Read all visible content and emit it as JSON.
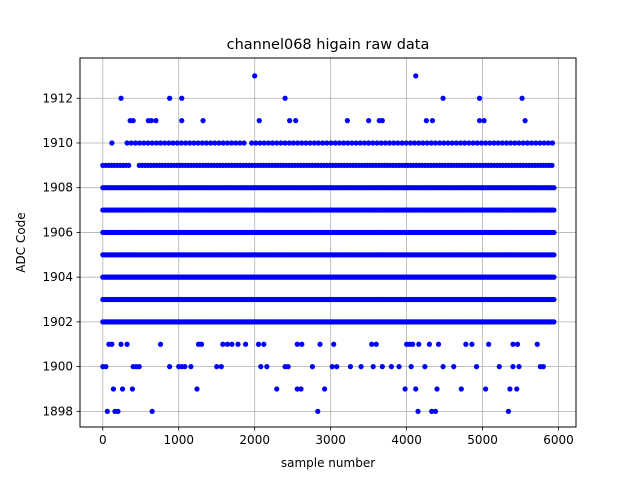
{
  "chart_data": {
    "type": "scatter",
    "title": "channel068 higain raw data",
    "xlabel": "sample number",
    "ylabel": "ADC Code",
    "xlim": [
      -300,
      6230
    ],
    "ylim": [
      1897.3,
      1913.8
    ],
    "xticks": [
      0,
      1000,
      2000,
      3000,
      4000,
      5000,
      6000
    ],
    "yticks": [
      1898,
      1900,
      1902,
      1904,
      1906,
      1908,
      1910,
      1912
    ],
    "grid": true,
    "marker_color": "#0000ff",
    "series": [
      {
        "levels": [
          {
            "y": 1902,
            "ranges": [
              [
                0,
                5940
              ]
            ],
            "step": 20
          },
          {
            "y": 1903,
            "ranges": [
              [
                0,
                5940
              ]
            ],
            "step": 22
          },
          {
            "y": 1904,
            "ranges": [
              [
                0,
                5940
              ]
            ],
            "step": 18
          },
          {
            "y": 1905,
            "ranges": [
              [
                0,
                5940
              ]
            ],
            "step": 18
          },
          {
            "y": 1906,
            "ranges": [
              [
                0,
                5940
              ]
            ],
            "step": 18
          },
          {
            "y": 1907,
            "ranges": [
              [
                0,
                5940
              ]
            ],
            "step": 18
          },
          {
            "y": 1908,
            "ranges": [
              [
                0,
                5940
              ]
            ],
            "step": 20
          },
          {
            "y": 1909,
            "ranges": [
              [
                0,
                360
              ],
              [
                480,
                5940
              ]
            ],
            "step": 38
          },
          {
            "y": 1910,
            "ranges": [
              [
                320,
                1900
              ],
              [
                1960,
                5940
              ]
            ],
            "step": 55
          }
        ],
        "points": [
          [
            60,
            1898
          ],
          [
            160,
            1898
          ],
          [
            200,
            1898
          ],
          [
            650,
            1898
          ],
          [
            2830,
            1898
          ],
          [
            4150,
            1898
          ],
          [
            4330,
            1898
          ],
          [
            4380,
            1898
          ],
          [
            5340,
            1898
          ],
          [
            140,
            1899
          ],
          [
            260,
            1899
          ],
          [
            390,
            1899
          ],
          [
            1240,
            1899
          ],
          [
            2290,
            1899
          ],
          [
            2560,
            1899
          ],
          [
            2610,
            1899
          ],
          [
            2920,
            1899
          ],
          [
            3980,
            1899
          ],
          [
            4120,
            1899
          ],
          [
            4400,
            1899
          ],
          [
            4720,
            1899
          ],
          [
            5040,
            1899
          ],
          [
            5360,
            1899
          ],
          [
            5450,
            1899
          ],
          [
            0,
            1900
          ],
          [
            40,
            1900
          ],
          [
            400,
            1900
          ],
          [
            440,
            1900
          ],
          [
            480,
            1900
          ],
          [
            880,
            1900
          ],
          [
            1000,
            1900
          ],
          [
            1040,
            1900
          ],
          [
            1080,
            1900
          ],
          [
            1160,
            1900
          ],
          [
            1500,
            1900
          ],
          [
            1560,
            1900
          ],
          [
            2080,
            1900
          ],
          [
            2160,
            1900
          ],
          [
            2400,
            1900
          ],
          [
            2440,
            1900
          ],
          [
            2760,
            1900
          ],
          [
            3020,
            1900
          ],
          [
            3080,
            1900
          ],
          [
            3260,
            1900
          ],
          [
            3400,
            1900
          ],
          [
            3560,
            1900
          ],
          [
            3680,
            1900
          ],
          [
            3800,
            1900
          ],
          [
            3900,
            1900
          ],
          [
            4060,
            1900
          ],
          [
            4240,
            1900
          ],
          [
            4480,
            1900
          ],
          [
            4620,
            1900
          ],
          [
            4920,
            1900
          ],
          [
            5220,
            1900
          ],
          [
            5400,
            1900
          ],
          [
            5480,
            1900
          ],
          [
            5760,
            1900
          ],
          [
            5800,
            1900
          ],
          [
            80,
            1901
          ],
          [
            120,
            1901
          ],
          [
            240,
            1901
          ],
          [
            320,
            1901
          ],
          [
            760,
            1901
          ],
          [
            1260,
            1901
          ],
          [
            1300,
            1901
          ],
          [
            1580,
            1901
          ],
          [
            1640,
            1901
          ],
          [
            1700,
            1901
          ],
          [
            1780,
            1901
          ],
          [
            1880,
            1901
          ],
          [
            2050,
            1901
          ],
          [
            2120,
            1901
          ],
          [
            2560,
            1901
          ],
          [
            2620,
            1901
          ],
          [
            2860,
            1901
          ],
          [
            3040,
            1901
          ],
          [
            3540,
            1901
          ],
          [
            3600,
            1901
          ],
          [
            4000,
            1901
          ],
          [
            4040,
            1901
          ],
          [
            4080,
            1901
          ],
          [
            4160,
            1901
          ],
          [
            4300,
            1901
          ],
          [
            4420,
            1901
          ],
          [
            4780,
            1901
          ],
          [
            4860,
            1901
          ],
          [
            5080,
            1901
          ],
          [
            5400,
            1901
          ],
          [
            5460,
            1901
          ],
          [
            5720,
            1901
          ],
          [
            120,
            1910
          ],
          [
            360,
            1911
          ],
          [
            400,
            1911
          ],
          [
            600,
            1911
          ],
          [
            640,
            1911
          ],
          [
            700,
            1911
          ],
          [
            1040,
            1911
          ],
          [
            1320,
            1911
          ],
          [
            2060,
            1911
          ],
          [
            2460,
            1911
          ],
          [
            2540,
            1911
          ],
          [
            3220,
            1911
          ],
          [
            3500,
            1911
          ],
          [
            3640,
            1911
          ],
          [
            3680,
            1911
          ],
          [
            4260,
            1911
          ],
          [
            4340,
            1911
          ],
          [
            4960,
            1911
          ],
          [
            5020,
            1911
          ],
          [
            5560,
            1911
          ],
          [
            240,
            1912
          ],
          [
            880,
            1912
          ],
          [
            1040,
            1912
          ],
          [
            2400,
            1912
          ],
          [
            4480,
            1912
          ],
          [
            4960,
            1912
          ],
          [
            5520,
            1912
          ],
          [
            2000,
            1913
          ],
          [
            4120,
            1913
          ]
        ]
      }
    ]
  }
}
